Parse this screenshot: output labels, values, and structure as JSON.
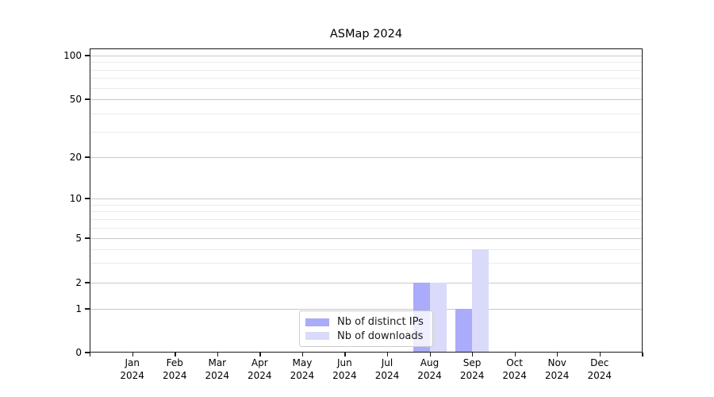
{
  "chart_data": {
    "type": "bar",
    "title": "ASMap 2024",
    "categories": [
      "Jan 2024",
      "Feb 2024",
      "Mar 2024",
      "Apr 2024",
      "May 2024",
      "Jun 2024",
      "Jul 2024",
      "Aug 2024",
      "Sep 2024",
      "Oct 2024",
      "Nov 2024",
      "Dec 2024"
    ],
    "series": [
      {
        "name": "Nb of distinct IPs",
        "color": "#aaabfa",
        "values": [
          0,
          0,
          0,
          0,
          0,
          0,
          0,
          2,
          1,
          0,
          0,
          0
        ]
      },
      {
        "name": "Nb of downloads",
        "color": "#dadafa",
        "values": [
          0,
          0,
          0,
          0,
          0,
          0,
          0,
          2,
          4,
          0,
          0,
          0
        ]
      }
    ],
    "xlabel": "",
    "ylabel": "",
    "yscale": "symlog",
    "ylim": [
      0,
      110
    ],
    "y_major_ticks": [
      0,
      1,
      2,
      5,
      10,
      20,
      50,
      100
    ],
    "y_minor_gridlines": [
      3,
      4,
      6,
      7,
      8,
      9,
      30,
      40,
      60,
      70,
      80,
      90
    ],
    "grid": "horizontal",
    "legend_position": "lower center"
  }
}
